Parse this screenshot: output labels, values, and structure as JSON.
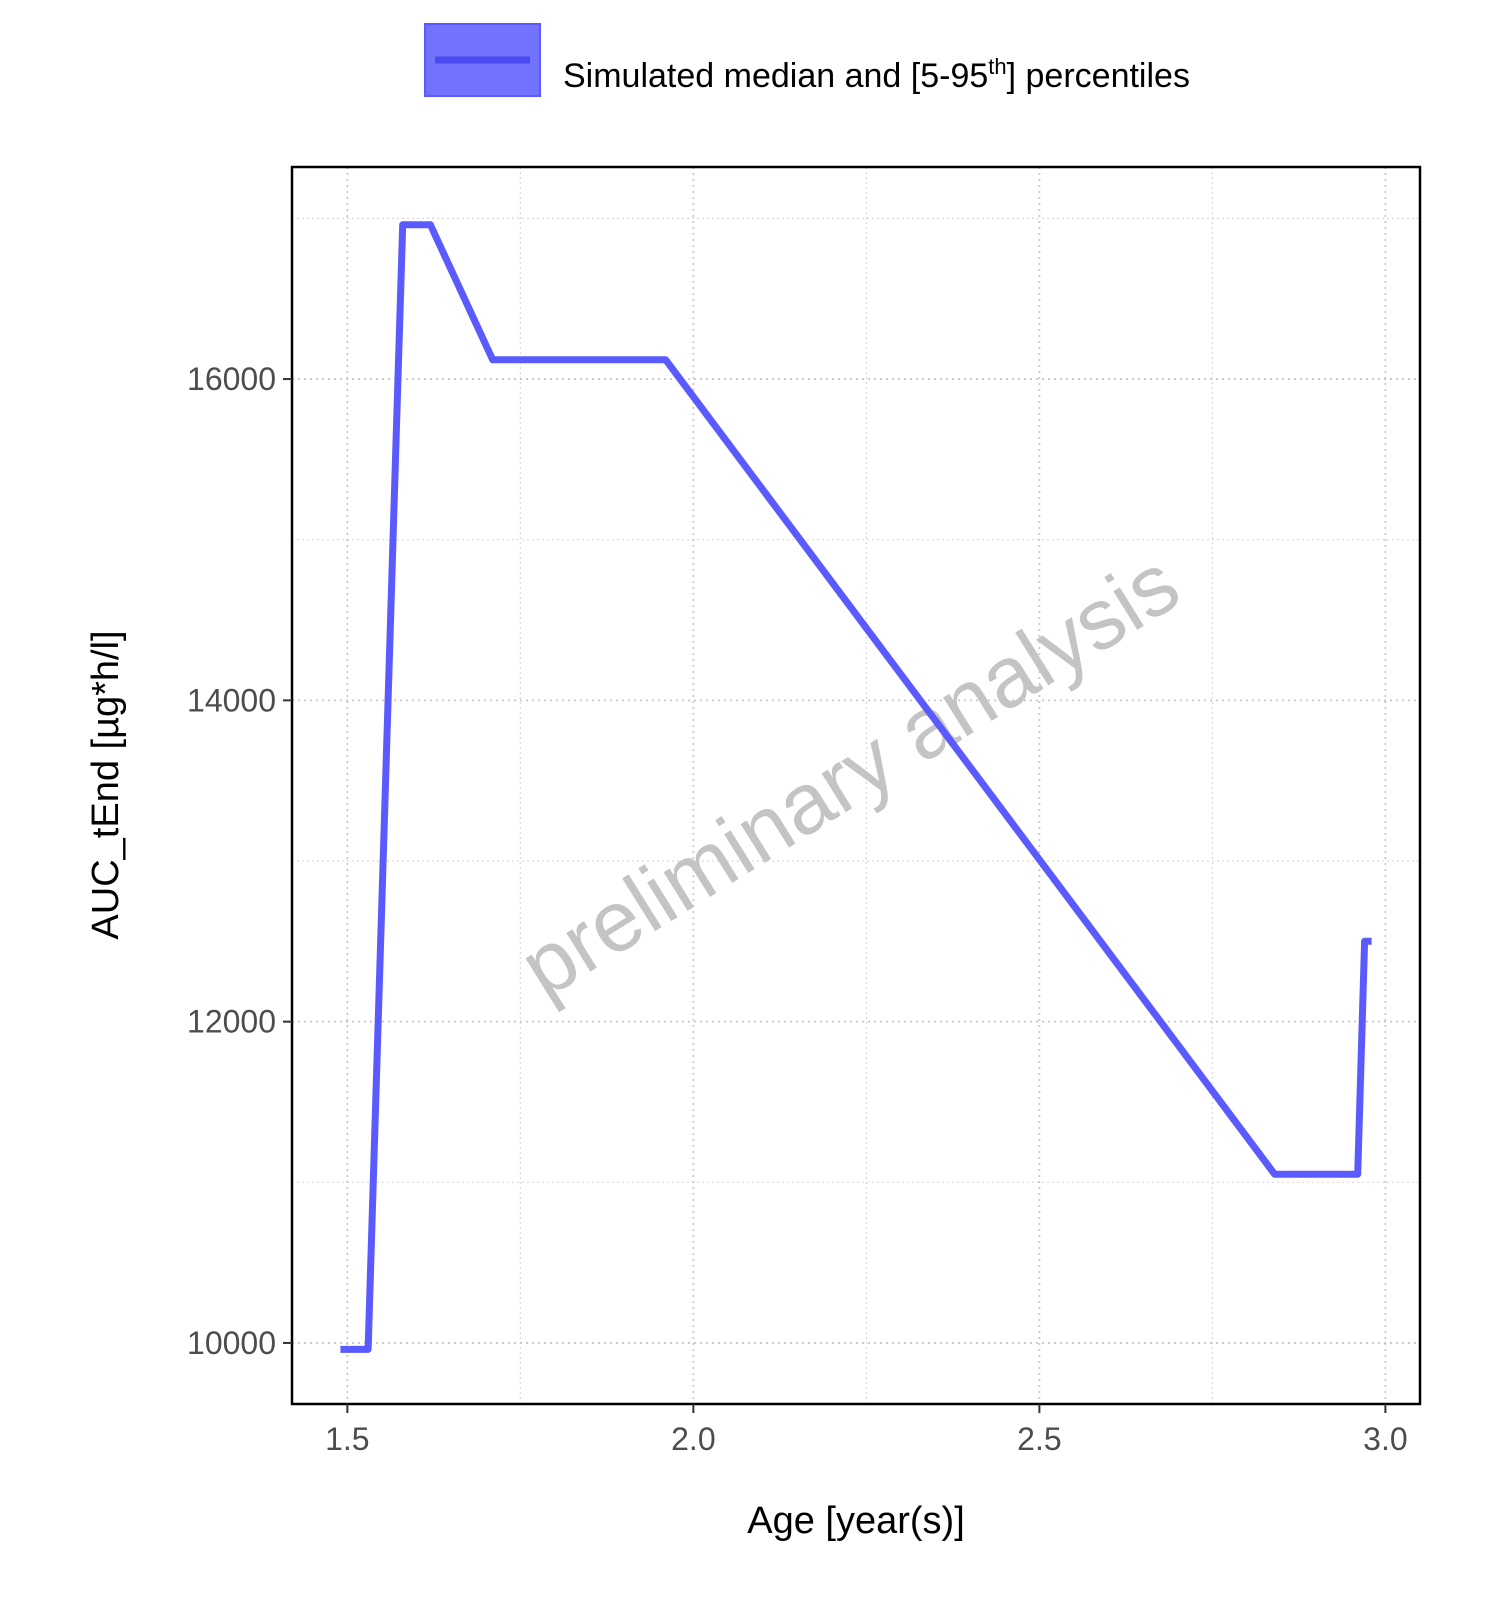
{
  "chart_data": {
    "type": "line",
    "xlabel": "Age [year(s)]",
    "ylabel": "AUC_tEnd [µg*h/l]",
    "xlim": [
      1.42,
      3.05
    ],
    "ylim": [
      9620,
      17320
    ],
    "x_ticks": [
      1.5,
      2.0,
      2.5,
      3.0
    ],
    "x_tick_labels": [
      "1.5",
      "2.0",
      "2.5",
      "3.0"
    ],
    "y_ticks": [
      10000,
      12000,
      14000,
      16000
    ],
    "y_tick_labels": [
      "10000",
      "12000",
      "14000",
      "16000"
    ],
    "grid": true,
    "legend_position": "top",
    "legend": {
      "label_main": "Simulated median and [5-95",
      "label_sup": "th",
      "label_end": "] percentiles"
    },
    "watermark": "preliminary analysis",
    "series": [
      {
        "color": "#5a5aff",
        "x": [
          1.49,
          1.53,
          1.58,
          1.62,
          1.71,
          1.96,
          2.84,
          2.96,
          2.97,
          2.98
        ],
        "y": [
          9960,
          9960,
          16960,
          16960,
          16120,
          16120,
          11050,
          11050,
          12500,
          12500
        ]
      }
    ]
  }
}
